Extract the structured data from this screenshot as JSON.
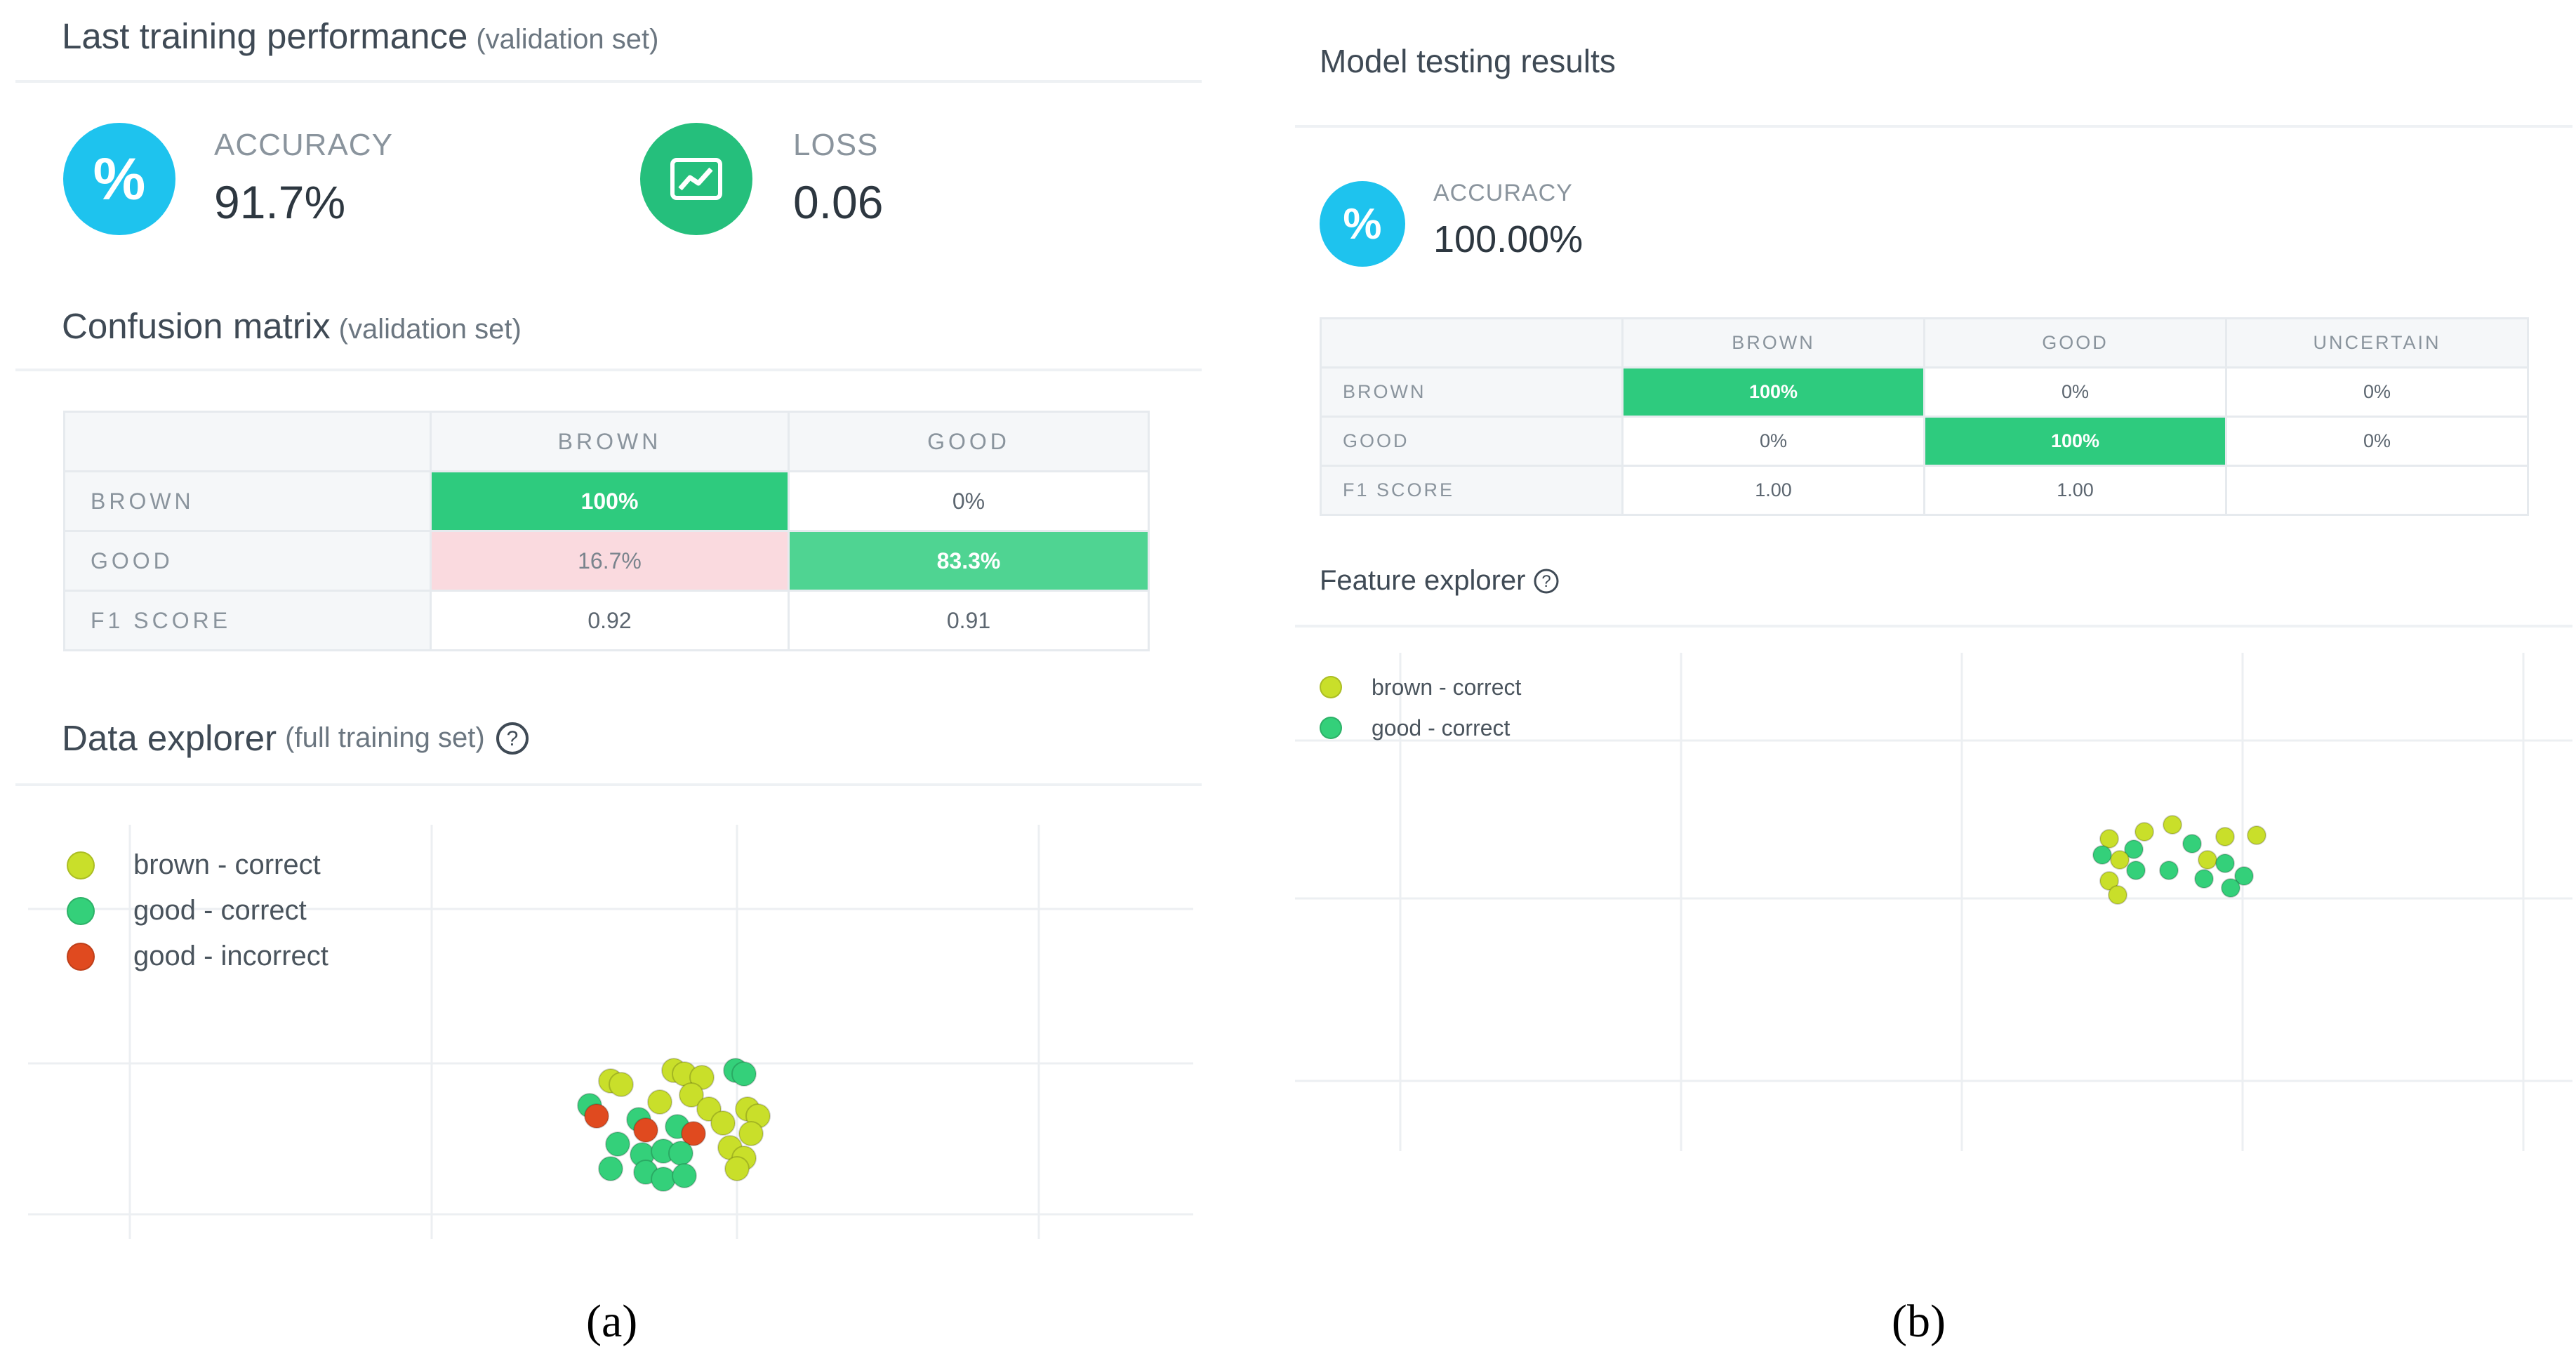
{
  "colors": {
    "accuracy_icon": "#1ec3ee",
    "loss_icon": "#25bf7c",
    "brown": "#c9df2a",
    "good": "#34d07a",
    "incorrect": "#e04a1f",
    "cell_green": "#2ecb7e",
    "cell_green_light": "#4fd492",
    "cell_pink": "#fadadf"
  },
  "panel_a": {
    "training_title": "Last training performance",
    "training_subtitle": "(validation set)",
    "accuracy": {
      "icon": "percent-icon",
      "label": "ACCURACY",
      "value": "91.7%"
    },
    "loss": {
      "icon": "chart-line-icon",
      "label": "LOSS",
      "value": "0.06"
    },
    "confusion_title": "Confusion matrix",
    "confusion_subtitle": "(validation set)",
    "matrix": {
      "columns": [
        "BROWN",
        "GOOD"
      ],
      "rows": [
        {
          "label": "BROWN",
          "cells": [
            "100%",
            "0%"
          ]
        },
        {
          "label": "GOOD",
          "cells": [
            "16.7%",
            "83.3%"
          ]
        },
        {
          "label": "F1 SCORE",
          "cells": [
            "0.92",
            "0.91"
          ]
        }
      ]
    },
    "explorer_title": "Data explorer",
    "explorer_subtitle": "(full training set)",
    "help_icon": "question-circle-icon",
    "legend": [
      "brown - correct",
      "good - correct",
      "good - incorrect"
    ]
  },
  "panel_b": {
    "testing_title": "Model testing results",
    "accuracy": {
      "icon": "percent-icon",
      "label": "ACCURACY",
      "value": "100.00%"
    },
    "matrix": {
      "columns": [
        "BROWN",
        "GOOD",
        "UNCERTAIN"
      ],
      "rows": [
        {
          "label": "BROWN",
          "cells": [
            "100%",
            "0%",
            "0%"
          ]
        },
        {
          "label": "GOOD",
          "cells": [
            "0%",
            "100%",
            "0%"
          ]
        },
        {
          "label": "F1 SCORE",
          "cells": [
            "1.00",
            "1.00",
            ""
          ]
        }
      ]
    },
    "explorer_title": "Feature explorer",
    "help_icon": "question-circle-icon",
    "legend": [
      "brown - correct",
      "good - correct"
    ]
  },
  "captions": {
    "a": "(a)",
    "b": "(b)"
  }
}
